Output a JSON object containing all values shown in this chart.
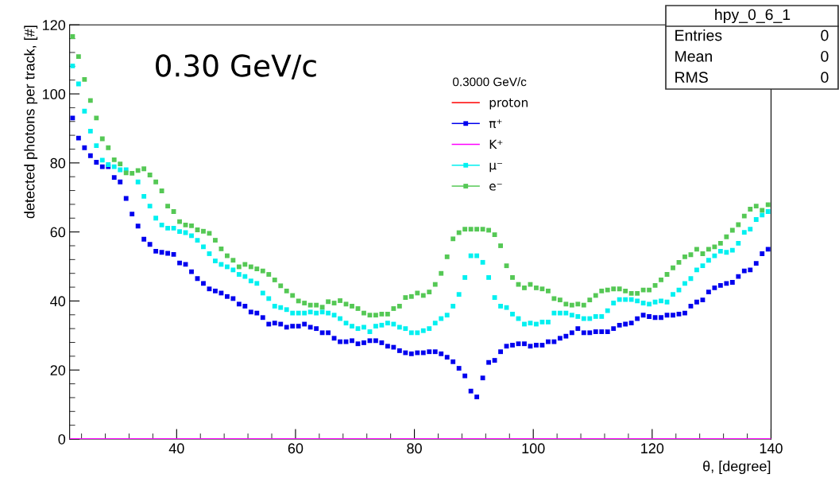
{
  "chart_data": {
    "type": "scatter",
    "xlabel": "θ, [degree]",
    "ylabel": "detected photons per track, [#]",
    "legend_title": "0.3000 GeV/c",
    "legend": "top",
    "marker": "square",
    "grid": false,
    "xlim": [
      22,
      140
    ],
    "ylim": [
      0,
      120
    ],
    "xticks": [
      40,
      60,
      80,
      100,
      120,
      140
    ],
    "yticks": [
      0,
      20,
      40,
      60,
      80,
      100,
      120
    ],
    "annotations": [
      "0.30 GeV/c",
      "hpy_0_6_1",
      "Entries",
      "0",
      "Mean",
      "0",
      "RMS",
      "0"
    ],
    "x": [
      22.5,
      23.5,
      24.5,
      25.5,
      26.5,
      27.5,
      28.5,
      29.5,
      30.5,
      31.5,
      32.5,
      33.5,
      34.5,
      35.5,
      36.5,
      37.5,
      38.5,
      39.5,
      40.5,
      41.5,
      42.5,
      43.5,
      44.5,
      45.5,
      46.5,
      47.5,
      48.5,
      49.5,
      50.5,
      51.5,
      52.5,
      53.5,
      54.5,
      55.5,
      56.5,
      57.5,
      58.5,
      59.5,
      60.5,
      61.5,
      62.5,
      63.5,
      64.5,
      65.5,
      66.5,
      67.5,
      68.5,
      69.5,
      70.5,
      71.5,
      72.5,
      73.5,
      74.5,
      75.5,
      76.5,
      77.5,
      78.5,
      79.5,
      80.5,
      81.5,
      82.5,
      83.5,
      84.5,
      85.5,
      86.5,
      87.5,
      88.5,
      89.5,
      90.5,
      91.5,
      92.5,
      93.5,
      94.5,
      95.5,
      96.5,
      97.5,
      98.5,
      99.5,
      100.5,
      101.5,
      102.5,
      103.5,
      104.5,
      105.5,
      106.5,
      107.5,
      108.5,
      109.5,
      110.5,
      111.5,
      112.5,
      113.5,
      114.5,
      115.5,
      116.5,
      117.5,
      118.5,
      119.5,
      120.5,
      121.5,
      122.5,
      123.5,
      124.5,
      125.5,
      126.5,
      127.5,
      128.5,
      129.5,
      130.5,
      131.5,
      132.5,
      133.5,
      134.5,
      135.5,
      136.5,
      137.5,
      138.5,
      139.5
    ],
    "series": [
      {
        "name": "proton",
        "type": "line",
        "marker": "none",
        "color": "#ff0000",
        "values": [
          null,
          null,
          null,
          null,
          null,
          null,
          null,
          null,
          null,
          null,
          null,
          null,
          null,
          null,
          null,
          null,
          null,
          null,
          null,
          null,
          null,
          null,
          null,
          null,
          null,
          null,
          null,
          null,
          null,
          null,
          null,
          null,
          null,
          null,
          null,
          null,
          null,
          null,
          null,
          null,
          null,
          null,
          null,
          null,
          null,
          null,
          null,
          null,
          null,
          null,
          null,
          null,
          null,
          null,
          null,
          null,
          null,
          null,
          null,
          null,
          null,
          null,
          null,
          null,
          null,
          null,
          null,
          null,
          null,
          null,
          null,
          null,
          null,
          null,
          null,
          null,
          null,
          null,
          null,
          null,
          null,
          null,
          null,
          null,
          null,
          null,
          null,
          null,
          null,
          null,
          null,
          null,
          null,
          null,
          null,
          null,
          null,
          null,
          null,
          null,
          null,
          null,
          null,
          null,
          null,
          null,
          null,
          null,
          null,
          null,
          null,
          null,
          null,
          null,
          null,
          null,
          null,
          null
        ]
      },
      {
        "name": "π⁺",
        "color": "#0000ee",
        "values": [
          93.0,
          87.2,
          84.4,
          82.1,
          80.2,
          78.9,
          78.9,
          75.8,
          74.5,
          69.7,
          65.2,
          61.7,
          57.9,
          56.4,
          54.4,
          54.1,
          53.8,
          53.5,
          51.0,
          50.6,
          48.5,
          46.5,
          45.1,
          43.5,
          42.9,
          42.3,
          41.3,
          40.7,
          39.1,
          38.5,
          36.8,
          36.5,
          35.2,
          33.3,
          33.6,
          33.3,
          32.4,
          32.7,
          32.7,
          33.3,
          32.4,
          32.0,
          30.8,
          30.8,
          29.2,
          28.2,
          28.2,
          28.5,
          27.6,
          27.9,
          28.5,
          28.5,
          27.9,
          26.9,
          26.6,
          25.6,
          25.0,
          24.7,
          25.0,
          25.0,
          25.3,
          25.3,
          24.7,
          23.7,
          22.4,
          20.5,
          18.3,
          13.9,
          12.2,
          17.7,
          22.2,
          22.8,
          25.3,
          26.9,
          27.2,
          27.6,
          27.6,
          26.9,
          27.2,
          27.2,
          28.2,
          28.2,
          29.2,
          29.8,
          30.8,
          32.0,
          30.8,
          30.8,
          31.1,
          31.1,
          31.1,
          32.0,
          33.0,
          33.3,
          33.6,
          34.9,
          35.9,
          35.5,
          35.2,
          35.2,
          35.9,
          35.9,
          36.2,
          36.5,
          38.5,
          39.7,
          40.3,
          42.6,
          43.8,
          44.5,
          45.1,
          45.4,
          47.1,
          48.7,
          49.0,
          50.9,
          53.7,
          55.0
        ]
      },
      {
        "name": "K⁺",
        "type": "line",
        "marker": "none",
        "color": "#ff00ff",
        "x": [
          22,
          140
        ],
        "values": [
          0,
          0
        ]
      },
      {
        "name": "μ⁻",
        "color": "#00f0f0",
        "values": [
          108.1,
          102.9,
          95.0,
          89.2,
          85.0,
          80.8,
          79.5,
          78.9,
          78.0,
          78.0,
          null,
          74.5,
          70.3,
          67.5,
          64.0,
          62.0,
          61.1,
          61.1,
          60.1,
          59.8,
          58.9,
          57.6,
          55.7,
          53.7,
          51.6,
          50.6,
          49.9,
          49.0,
          47.7,
          47.1,
          45.8,
          45.1,
          42.3,
          40.7,
          38.5,
          38.1,
          37.5,
          36.5,
          36.5,
          36.5,
          36.8,
          36.5,
          36.8,
          36.5,
          35.9,
          34.9,
          33.6,
          32.7,
          32.0,
          32.4,
          31.1,
          32.7,
          33.0,
          33.6,
          33.3,
          32.4,
          32.0,
          30.8,
          30.8,
          31.4,
          32.0,
          33.6,
          34.9,
          35.9,
          38.5,
          41.9,
          46.8,
          53.1,
          53.1,
          51.2,
          46.8,
          41.0,
          38.5,
          38.1,
          36.2,
          34.9,
          33.3,
          33.6,
          33.3,
          33.9,
          33.9,
          36.5,
          36.5,
          36.5,
          35.9,
          35.5,
          34.9,
          34.9,
          35.5,
          35.5,
          37.2,
          39.4,
          40.4,
          40.4,
          40.4,
          40.0,
          39.4,
          39.1,
          39.7,
          40.0,
          39.7,
          41.9,
          43.2,
          45.1,
          46.5,
          49.0,
          50.2,
          51.8,
          53.1,
          54.4,
          54.1,
          54.7,
          56.7,
          59.9,
          60.8,
          63.6,
          64.9,
          65.9
        ]
      },
      {
        "name": "e⁻",
        "color": "#55c855",
        "values": [
          116.6,
          110.8,
          104.2,
          98.1,
          93.0,
          87.0,
          84.4,
          80.9,
          79.7,
          77.1,
          77.0,
          77.8,
          78.3,
          76.5,
          74.5,
          71.9,
          67.5,
          65.9,
          63.0,
          62.0,
          61.8,
          60.6,
          60.2,
          59.6,
          57.6,
          55.1,
          53.1,
          51.8,
          49.9,
          50.6,
          49.9,
          49.3,
          48.7,
          47.7,
          46.1,
          44.4,
          42.9,
          41.6,
          40.0,
          39.4,
          38.8,
          38.8,
          38.2,
          39.8,
          39.4,
          40.1,
          39.1,
          38.5,
          37.8,
          36.5,
          35.9,
          35.9,
          36.2,
          36.2,
          37.8,
          38.5,
          41.0,
          41.3,
          42.3,
          41.6,
          42.6,
          44.8,
          48.0,
          52.8,
          58.0,
          59.8,
          60.8,
          60.8,
          60.8,
          60.8,
          60.5,
          59.2,
          56.0,
          50.2,
          46.8,
          44.8,
          43.8,
          44.8,
          43.8,
          43.5,
          42.9,
          40.7,
          40.3,
          39.1,
          38.8,
          39.1,
          38.8,
          40.3,
          41.6,
          42.9,
          43.2,
          43.5,
          43.5,
          42.9,
          42.2,
          42.2,
          43.2,
          43.2,
          44.5,
          46.1,
          47.7,
          49.6,
          51.2,
          52.8,
          53.4,
          55.0,
          53.7,
          55.0,
          55.7,
          56.7,
          58.6,
          60.5,
          62.1,
          64.6,
          66.6,
          67.5,
          66.3,
          67.9
        ]
      }
    ]
  }
}
